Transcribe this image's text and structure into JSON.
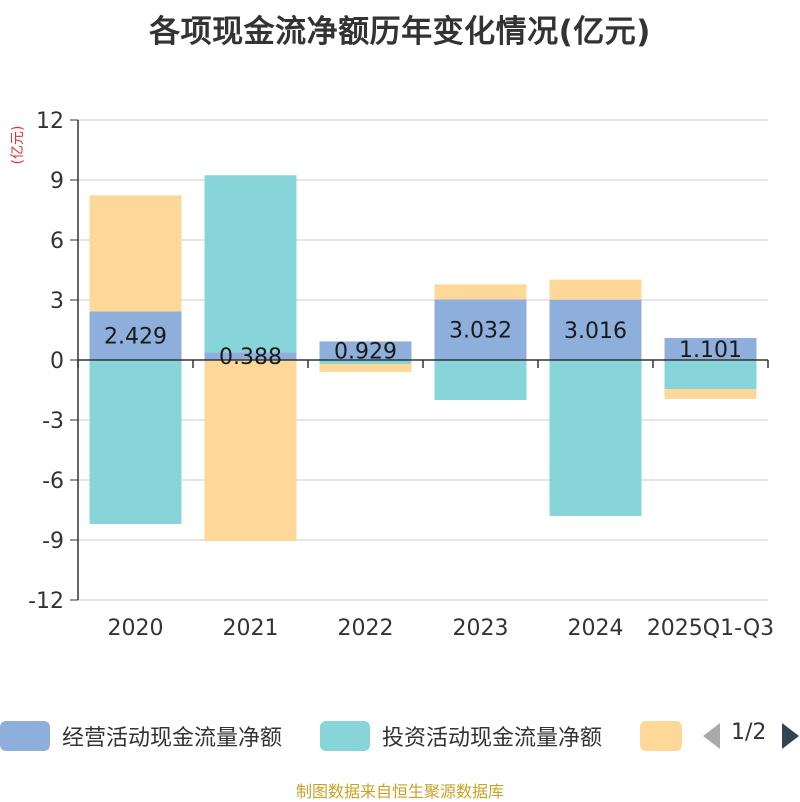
{
  "chart_data": {
    "type": "bar",
    "stacked": true,
    "title": "各项现金流净额历年变化情况(亿元)",
    "ylabel": "(亿元)",
    "xlabel": "",
    "ylim": [
      -12,
      12
    ],
    "yticks": [
      12,
      9,
      6,
      3,
      0,
      -3,
      -6,
      -9,
      -12
    ],
    "grid": true,
    "categories": [
      "2020",
      "2021",
      "2022",
      "2023",
      "2024",
      "2025Q1-Q3"
    ],
    "series": [
      {
        "name": "经营活动现金流量净额",
        "color": "#8eafdc",
        "values": [
          2.429,
          0.388,
          0.929,
          3.032,
          3.016,
          1.101
        ],
        "labels": [
          "2.429",
          "0.388",
          "0.929",
          "3.032",
          "3.016",
          "1.101"
        ]
      },
      {
        "name": "投资活动现金流量净额",
        "color": "#87d5d8",
        "values": [
          -8.2,
          8.85,
          -0.2,
          -2.0,
          -7.8,
          -1.45
        ]
      },
      {
        "name": "",
        "color": "#fed898",
        "values": [
          5.8,
          -9.05,
          -0.4,
          0.75,
          1.0,
          -0.5
        ]
      }
    ]
  },
  "legend": {
    "items": [
      {
        "label": "经营活动现金流量净额",
        "color": "#8eafdc"
      },
      {
        "label": "投资活动现金流量净额",
        "color": "#87d5d8"
      },
      {
        "label": "",
        "color": "#fed898"
      }
    ],
    "page": "1/2"
  },
  "source_note": "制图数据来自恒生聚源数据库"
}
